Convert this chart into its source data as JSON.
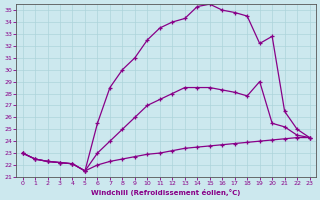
{
  "xlabel": "Windchill (Refroidissement éolien,°C)",
  "background_color": "#cce8ee",
  "line_color": "#880088",
  "xlim": [
    -0.5,
    23.5
  ],
  "ylim": [
    21,
    35.5
  ],
  "yticks": [
    21,
    22,
    23,
    24,
    25,
    26,
    27,
    28,
    29,
    30,
    31,
    32,
    33,
    34,
    35
  ],
  "xticks": [
    0,
    1,
    2,
    3,
    4,
    5,
    6,
    7,
    8,
    9,
    10,
    11,
    12,
    13,
    14,
    15,
    16,
    17,
    18,
    19,
    20,
    21,
    22,
    23
  ],
  "lines": [
    {
      "x": [
        0,
        1,
        2,
        3,
        4,
        5,
        6,
        7,
        8,
        9,
        10,
        11,
        12,
        13,
        14,
        15,
        16,
        17,
        18,
        19,
        20,
        21,
        22,
        23
      ],
      "y": [
        23.0,
        22.5,
        22.3,
        22.2,
        22.1,
        21.5,
        22.0,
        22.3,
        22.5,
        22.7,
        22.9,
        23.0,
        23.2,
        23.4,
        23.5,
        23.6,
        23.7,
        23.8,
        23.9,
        24.0,
        24.1,
        24.2,
        24.3,
        24.3
      ]
    },
    {
      "x": [
        0,
        1,
        2,
        3,
        4,
        5,
        6,
        7,
        8,
        9,
        10,
        11,
        12,
        13,
        14,
        15,
        16,
        17,
        18,
        19,
        20,
        21,
        22,
        23
      ],
      "y": [
        23.0,
        22.5,
        22.3,
        22.2,
        22.1,
        21.5,
        23.0,
        24.0,
        25.0,
        26.0,
        27.0,
        27.5,
        28.0,
        28.5,
        28.5,
        28.5,
        28.3,
        28.1,
        27.8,
        29.0,
        25.5,
        25.2,
        24.5,
        24.3
      ]
    },
    {
      "x": [
        0,
        1,
        2,
        3,
        4,
        5,
        6,
        7,
        8,
        9,
        10,
        11,
        12,
        13,
        14,
        15,
        16,
        17,
        18,
        19,
        20,
        21,
        22,
        23
      ],
      "y": [
        23.0,
        22.5,
        22.3,
        22.2,
        22.1,
        21.5,
        25.5,
        28.5,
        30.0,
        31.0,
        32.5,
        33.5,
        34.0,
        34.3,
        35.3,
        35.5,
        35.0,
        34.8,
        34.5,
        32.2,
        32.8,
        26.5,
        25.0,
        24.3
      ]
    }
  ]
}
